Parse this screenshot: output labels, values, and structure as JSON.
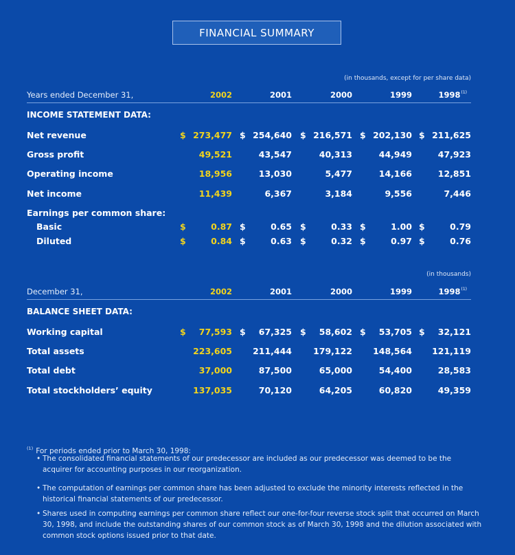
{
  "title": "FINANCIAL SUMMARY",
  "colors": {
    "background": "#0b4aa9",
    "highlight": "#f2d41d"
  },
  "income": {
    "note": "(in thousands, except for per share data)",
    "header_label": "Years ended December 31,",
    "years": [
      "2002",
      "2001",
      "2000",
      "1999",
      "1998"
    ],
    "footnote_mark": "(1)",
    "section": "INCOME STATEMENT DATA:",
    "rows": [
      {
        "label": "Net revenue",
        "values": [
          "273,477",
          "254,640",
          "216,571",
          "202,130",
          "211,625"
        ],
        "dollar": "$"
      },
      {
        "label": "Gross profit",
        "values": [
          "49,521",
          "43,547",
          "40,313",
          "44,949",
          "47,923"
        ]
      },
      {
        "label": "Operating income",
        "values": [
          "18,956",
          "13,030",
          "5,477",
          "14,166",
          "12,851"
        ]
      },
      {
        "label": "Net income",
        "values": [
          "11,439",
          "6,367",
          "3,184",
          "9,556",
          "7,446"
        ]
      }
    ],
    "eps_label": "Earnings per common share:",
    "eps_rows": [
      {
        "label": "Basic",
        "values": [
          "0.87",
          "0.65",
          "0.33",
          "1.00",
          "0.79"
        ],
        "dollar": "$"
      },
      {
        "label": "Diluted",
        "values": [
          "0.84",
          "0.63",
          "0.32",
          "0.97",
          "0.76"
        ],
        "dollar": "$"
      }
    ]
  },
  "balance": {
    "note": "(in thousands)",
    "header_label": "December 31,",
    "years": [
      "2002",
      "2001",
      "2000",
      "1999",
      "1998"
    ],
    "footnote_mark": "(1)",
    "section": "BALANCE SHEET DATA:",
    "rows": [
      {
        "label": "Working capital",
        "values": [
          "77,593",
          "67,325",
          "58,602",
          "53,705",
          "32,121"
        ],
        "dollar": "$"
      },
      {
        "label": "Total assets",
        "values": [
          "223,605",
          "211,444",
          "179,122",
          "148,564",
          "121,119"
        ]
      },
      {
        "label": "Total debt",
        "values": [
          "37,000",
          "87,500",
          "65,000",
          "54,400",
          "28,583"
        ]
      },
      {
        "label": "Total stockholders’ equity",
        "values": [
          "137,035",
          "70,120",
          "64,205",
          "60,820",
          "49,359"
        ]
      }
    ]
  },
  "footnote": {
    "mark": "(1)",
    "intro": "For periods ended prior to March 30, 1998:",
    "bullet": "•",
    "bullets": [
      "The consolidated financial statements of our predecessor are included as our predecessor was deemed to be the acquirer for accounting purposes in our reorganization.",
      "The computation of earnings per common share has been adjusted to exclude the minority interests reflected in the historical financial statements of our predecessor.",
      "Shares used in computing earnings per common share reflect our one-for-four reverse stock split that occurred on March 30, 1998, and include the outstanding shares of our common stock as of March 30, 1998 and the dilution associated with common stock options issued prior to that date."
    ]
  }
}
